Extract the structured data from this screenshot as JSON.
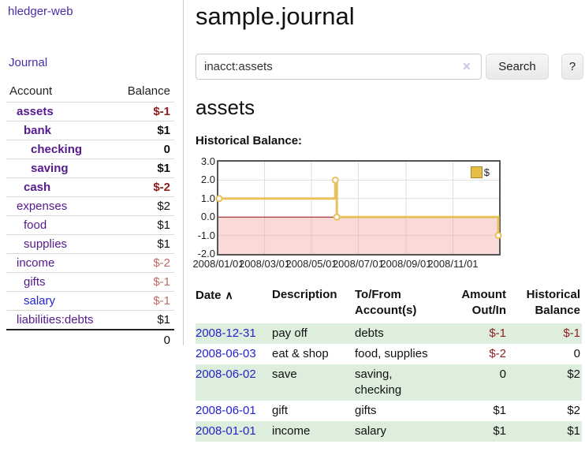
{
  "sidebar": {
    "brand": "hledger-web",
    "journal_link": "Journal",
    "headers": {
      "account": "Account",
      "balance": "Balance"
    },
    "accounts": [
      {
        "name": "assets",
        "indent": 0,
        "bold": true,
        "balance": "$-1",
        "negative": true
      },
      {
        "name": "bank",
        "indent": 1,
        "bold": true,
        "balance": "$1"
      },
      {
        "name": "checking",
        "indent": 2,
        "bold": true,
        "balance": "0"
      },
      {
        "name": "saving",
        "indent": 2,
        "bold": true,
        "balance": "$1"
      },
      {
        "name": "cash",
        "indent": 1,
        "bold": true,
        "balance": "$-2",
        "negative": true
      },
      {
        "name": "expenses",
        "indent": 0,
        "bold": false,
        "balance": "$2"
      },
      {
        "name": "food",
        "indent": 1,
        "bold": false,
        "balance": "$1"
      },
      {
        "name": "supplies",
        "indent": 1,
        "bold": false,
        "balance": "$1"
      },
      {
        "name": "income",
        "indent": 0,
        "bold": false,
        "balance": "$-2",
        "negative": true
      },
      {
        "name": "gifts",
        "indent": 1,
        "bold": false,
        "balance": "$-1",
        "negative": true
      },
      {
        "name": "salary",
        "indent": 1,
        "bold": false,
        "balance": "$-1",
        "negative": true,
        "link_style": "unvisited"
      },
      {
        "name": "liabilities:debts",
        "indent": 0,
        "bold": false,
        "balance": "$1"
      }
    ],
    "total": "0"
  },
  "header": {
    "title": "sample.journal"
  },
  "search": {
    "value": "inacct:assets",
    "clear_icon": "✕",
    "button_label": "Search",
    "help_label": "?"
  },
  "account_page": {
    "heading": "assets",
    "chart_label": "Historical Balance:"
  },
  "chart_data": {
    "type": "line",
    "title": "Historical Balance",
    "step": true,
    "series": [
      {
        "name": "$",
        "points": [
          [
            "2008-01-01",
            1
          ],
          [
            "2008-06-01",
            2
          ],
          [
            "2008-06-03",
            0
          ],
          [
            "2008-12-31",
            -1
          ]
        ]
      }
    ],
    "x_range": [
      "2008-01-01",
      "2008-12-31"
    ],
    "x_ticks": [
      "2008/01/01",
      "2008/03/01",
      "2008/05/01",
      "2008/07/01",
      "2008/09/01",
      "2008/11/01"
    ],
    "y_ticks": [
      3,
      2,
      1,
      0,
      -1,
      -2
    ],
    "y_tick_labels": [
      "3.0",
      "2.0",
      "1.0",
      "0.0",
      "-1.0",
      "-2.0"
    ],
    "ylim": [
      -2,
      3
    ],
    "grid": true,
    "legend": {
      "label": "$",
      "position": "top-right"
    },
    "colors": {
      "line": "#e7c15c",
      "marker_fill": "#ffffff",
      "negative_fill": "rgba(244,170,170,0.45)",
      "zero_line": "#8b1010",
      "grid": "#dddddd"
    }
  },
  "register": {
    "headers": {
      "date": "Date",
      "sort_icon": "∧",
      "description": "Description",
      "tofrom": "To/From Account(s)",
      "amount": "Amount Out/In",
      "balance": "Historical Balance"
    },
    "rows": [
      {
        "date": "2008-12-31",
        "description": "pay off",
        "accounts": "debts",
        "amount": "$-1",
        "balance": "$-1"
      },
      {
        "date": "2008-06-03",
        "description": "eat & shop",
        "accounts": "food, supplies",
        "amount": "$-2",
        "balance": "0"
      },
      {
        "date": "2008-06-02",
        "description": "save",
        "accounts": "saving, checking",
        "amount": "0",
        "balance": "$2"
      },
      {
        "date": "2008-06-01",
        "description": "gift",
        "accounts": "gifts",
        "amount": "$1",
        "balance": "$2"
      },
      {
        "date": "2008-01-01",
        "description": "income",
        "accounts": "salary",
        "amount": "$1",
        "balance": "$1"
      }
    ]
  }
}
